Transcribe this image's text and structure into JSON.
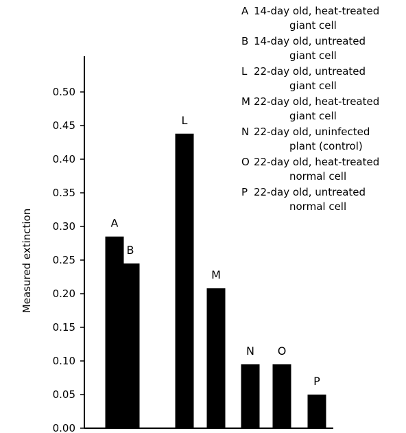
{
  "chart_data": {
    "type": "bar",
    "ylabel": "Measured extinction",
    "xlabel": "",
    "ylim": [
      0,
      0.55
    ],
    "yticks": [
      "0.00",
      "0.05",
      "0.10",
      "0.15",
      "0.20",
      "0.25",
      "0.30",
      "0.35",
      "0.40",
      "0.45",
      "0.50"
    ],
    "categories": [
      "A",
      "B",
      "L",
      "M",
      "N",
      "O",
      "P"
    ],
    "values": [
      0.285,
      0.245,
      0.438,
      0.208,
      0.095,
      0.095,
      0.05
    ],
    "bar_color": "#000000",
    "legend": [
      {
        "key": "A",
        "line1": "14-day old, heat-treated",
        "line2": "giant cell"
      },
      {
        "key": "B",
        "line1": "14-day old, untreated",
        "line2": "giant cell"
      },
      {
        "key": "L",
        "line1": "22-day old, untreated",
        "line2": "giant cell"
      },
      {
        "key": "M",
        "line1": "22-day old, heat-treated",
        "line2": "giant cell"
      },
      {
        "key": "N",
        "line1": "22-day old, uninfected",
        "line2": "plant (control)"
      },
      {
        "key": "O",
        "line1": "22-day old, heat-treated",
        "line2": "normal cell"
      },
      {
        "key": "P",
        "line1": "22-day old, untreated",
        "line2": "normal cell"
      }
    ]
  }
}
